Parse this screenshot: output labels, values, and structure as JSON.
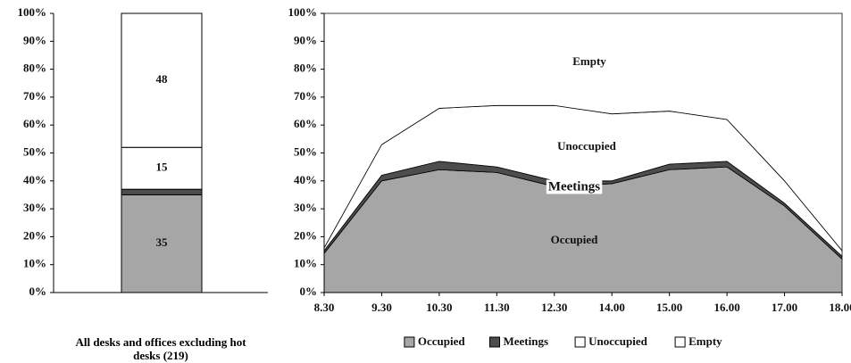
{
  "chart_data": [
    {
      "type": "stacked_bar",
      "categories": [
        "All desks and offices excluding hot desks (219)"
      ],
      "series": [
        {
          "color": "#a6a6a6",
          "values": [
            35
          ]
        },
        {
          "color": "#4d4d4d",
          "values": [
            2
          ]
        },
        {
          "color": "#ffffff",
          "values": [
            15
          ]
        },
        {
          "color": "#ffffff",
          "values": [
            48
          ]
        }
      ],
      "ylim": [
        0,
        100
      ],
      "yticks": [
        {
          "value": 0,
          "label": "0%"
        },
        {
          "value": 10,
          "label": "10%"
        },
        {
          "value": 20,
          "label": "20%"
        },
        {
          "value": 30,
          "label": "30%"
        },
        {
          "value": 40,
          "label": "40%"
        },
        {
          "value": 50,
          "label": "50%"
        },
        {
          "value": 60,
          "label": "60%"
        },
        {
          "value": 70,
          "label": "70%"
        },
        {
          "value": 80,
          "label": "80%"
        },
        {
          "value": 90,
          "label": "90%"
        },
        {
          "value": 100,
          "label": "100%"
        }
      ],
      "grid": false
    },
    {
      "type": "stacked_area",
      "categories": [
        "8.30",
        "9.30",
        "10.30",
        "11.30",
        "12.30",
        "14.00",
        "15.00",
        "16.00",
        "17.00",
        "18.00"
      ],
      "series": [
        {
          "name": "Occupied",
          "color": "#a6a6a6",
          "values": [
            14,
            40,
            44,
            43,
            38,
            39,
            44,
            45,
            31,
            12
          ]
        },
        {
          "name": "Meetings",
          "color": "#4d4d4d",
          "values": [
            1,
            2,
            3,
            2,
            2,
            1,
            2,
            2,
            1,
            1
          ]
        },
        {
          "name": "Unoccupied",
          "color": "#ffffff",
          "values": [
            1,
            11,
            19,
            22,
            27,
            24,
            19,
            15,
            8,
            2
          ]
        },
        {
          "name": "Empty",
          "color": "#ffffff",
          "values": [
            84,
            47,
            34,
            33,
            33,
            36,
            35,
            38,
            60,
            85
          ]
        }
      ],
      "annotations": [
        "Empty",
        "Unoccupied",
        "Meetings",
        "Occupied"
      ],
      "ylim": [
        0,
        100
      ],
      "yticks": [
        {
          "value": 0,
          "label": "0%"
        },
        {
          "value": 10,
          "label": "10%"
        },
        {
          "value": 20,
          "label": "20%"
        },
        {
          "value": 30,
          "label": "30%"
        },
        {
          "value": 40,
          "label": "40%"
        },
        {
          "value": 50,
          "label": "50%"
        },
        {
          "value": 60,
          "label": "60%"
        },
        {
          "value": 70,
          "label": "70%"
        },
        {
          "value": 80,
          "label": "80%"
        },
        {
          "value": 90,
          "label": "90%"
        },
        {
          "value": 100,
          "label": "100%"
        }
      ],
      "grid": false,
      "legend": "bottom"
    }
  ]
}
